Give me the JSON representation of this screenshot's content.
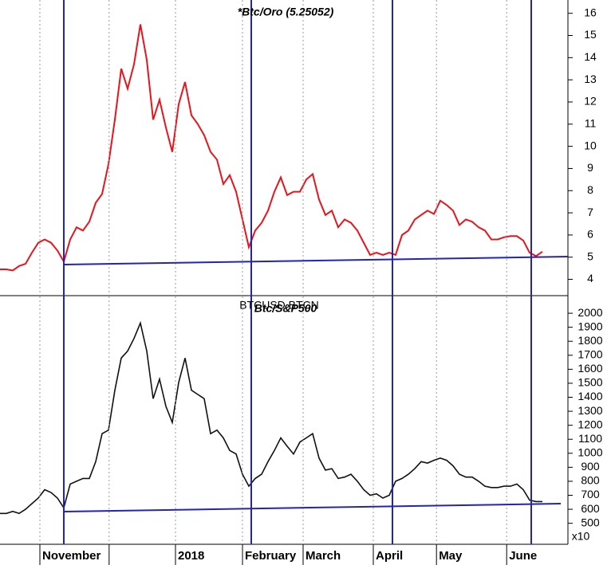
{
  "chart_data": [
    {
      "type": "line",
      "title": "*Btc/Oro (5.25052)",
      "color": "#e8141b",
      "xlim": [
        0,
        89
      ],
      "ylim": [
        3.3,
        16.6
      ],
      "yticks": [
        4,
        5,
        6,
        7,
        8,
        9,
        10,
        11,
        12,
        13,
        14,
        15,
        16
      ],
      "values": [
        4.45,
        4.45,
        4.4,
        4.6,
        4.7,
        5.2,
        5.65,
        5.8,
        5.65,
        5.3,
        4.8,
        5.8,
        6.35,
        6.2,
        6.6,
        7.45,
        7.85,
        9.2,
        11.2,
        13.5,
        12.6,
        13.7,
        15.5,
        13.9,
        11.2,
        12.1,
        10.85,
        9.75,
        11.9,
        12.9,
        11.4,
        11.0,
        10.5,
        9.75,
        9.4,
        8.3,
        8.7,
        7.95,
        6.7,
        5.45,
        6.2,
        6.55,
        7.1,
        7.95,
        8.6,
        7.8,
        7.95,
        7.95,
        8.5,
        8.75,
        7.6,
        6.9,
        7.1,
        6.35,
        6.7,
        6.55,
        6.2,
        5.65,
        5.1,
        5.2,
        5.1,
        5.2,
        5.1,
        6.0,
        6.2,
        6.7,
        6.9,
        7.1,
        6.95,
        7.55,
        7.35,
        7.1,
        6.45,
        6.7,
        6.6,
        6.35,
        6.2,
        5.8,
        5.8,
        5.9,
        5.95,
        5.95,
        5.75,
        5.2,
        5.05,
        5.25
      ]
    },
    {
      "type": "line",
      "title": "Btc/S&P500",
      "symbol": "BTCUSD BTCN",
      "color": "#111111",
      "xlim": [
        0,
        89
      ],
      "ylim": [
        350,
        2120
      ],
      "yticks": [
        500,
        600,
        700,
        800,
        900,
        1000,
        1100,
        1200,
        1300,
        1400,
        1500,
        1600,
        1700,
        1800,
        1900,
        2000
      ],
      "y_unit_label": "x10",
      "xticks": [
        {
          "value": 6.25,
          "label": "November"
        },
        {
          "value": 17.1,
          "label": null
        },
        {
          "value": 27.5,
          "label": "2018"
        },
        {
          "value": 38,
          "label": "February"
        },
        {
          "value": 47.5,
          "label": "March"
        },
        {
          "value": 58.5,
          "label": "April"
        },
        {
          "value": 68.4,
          "label": "May"
        },
        {
          "value": 79.4,
          "label": "June"
        }
      ],
      "values": [
        570,
        570,
        585,
        570,
        600,
        640,
        680,
        740,
        720,
        680,
        610,
        780,
        800,
        820,
        820,
        940,
        1140,
        1165,
        1450,
        1680,
        1730,
        1820,
        1930,
        1730,
        1390,
        1530,
        1335,
        1220,
        1505,
        1680,
        1450,
        1420,
        1390,
        1140,
        1165,
        1110,
        1020,
        995,
        850,
        765,
        820,
        850,
        940,
        1020,
        1110,
        1050,
        995,
        1080,
        1110,
        1140,
        965,
        880,
        890,
        820,
        830,
        850,
        800,
        740,
        700,
        710,
        680,
        700,
        800,
        820,
        850,
        890,
        940,
        930,
        950,
        965,
        950,
        910,
        850,
        830,
        830,
        800,
        765,
        755,
        755,
        765,
        765,
        780,
        740,
        665,
        655,
        655
      ]
    }
  ]
}
